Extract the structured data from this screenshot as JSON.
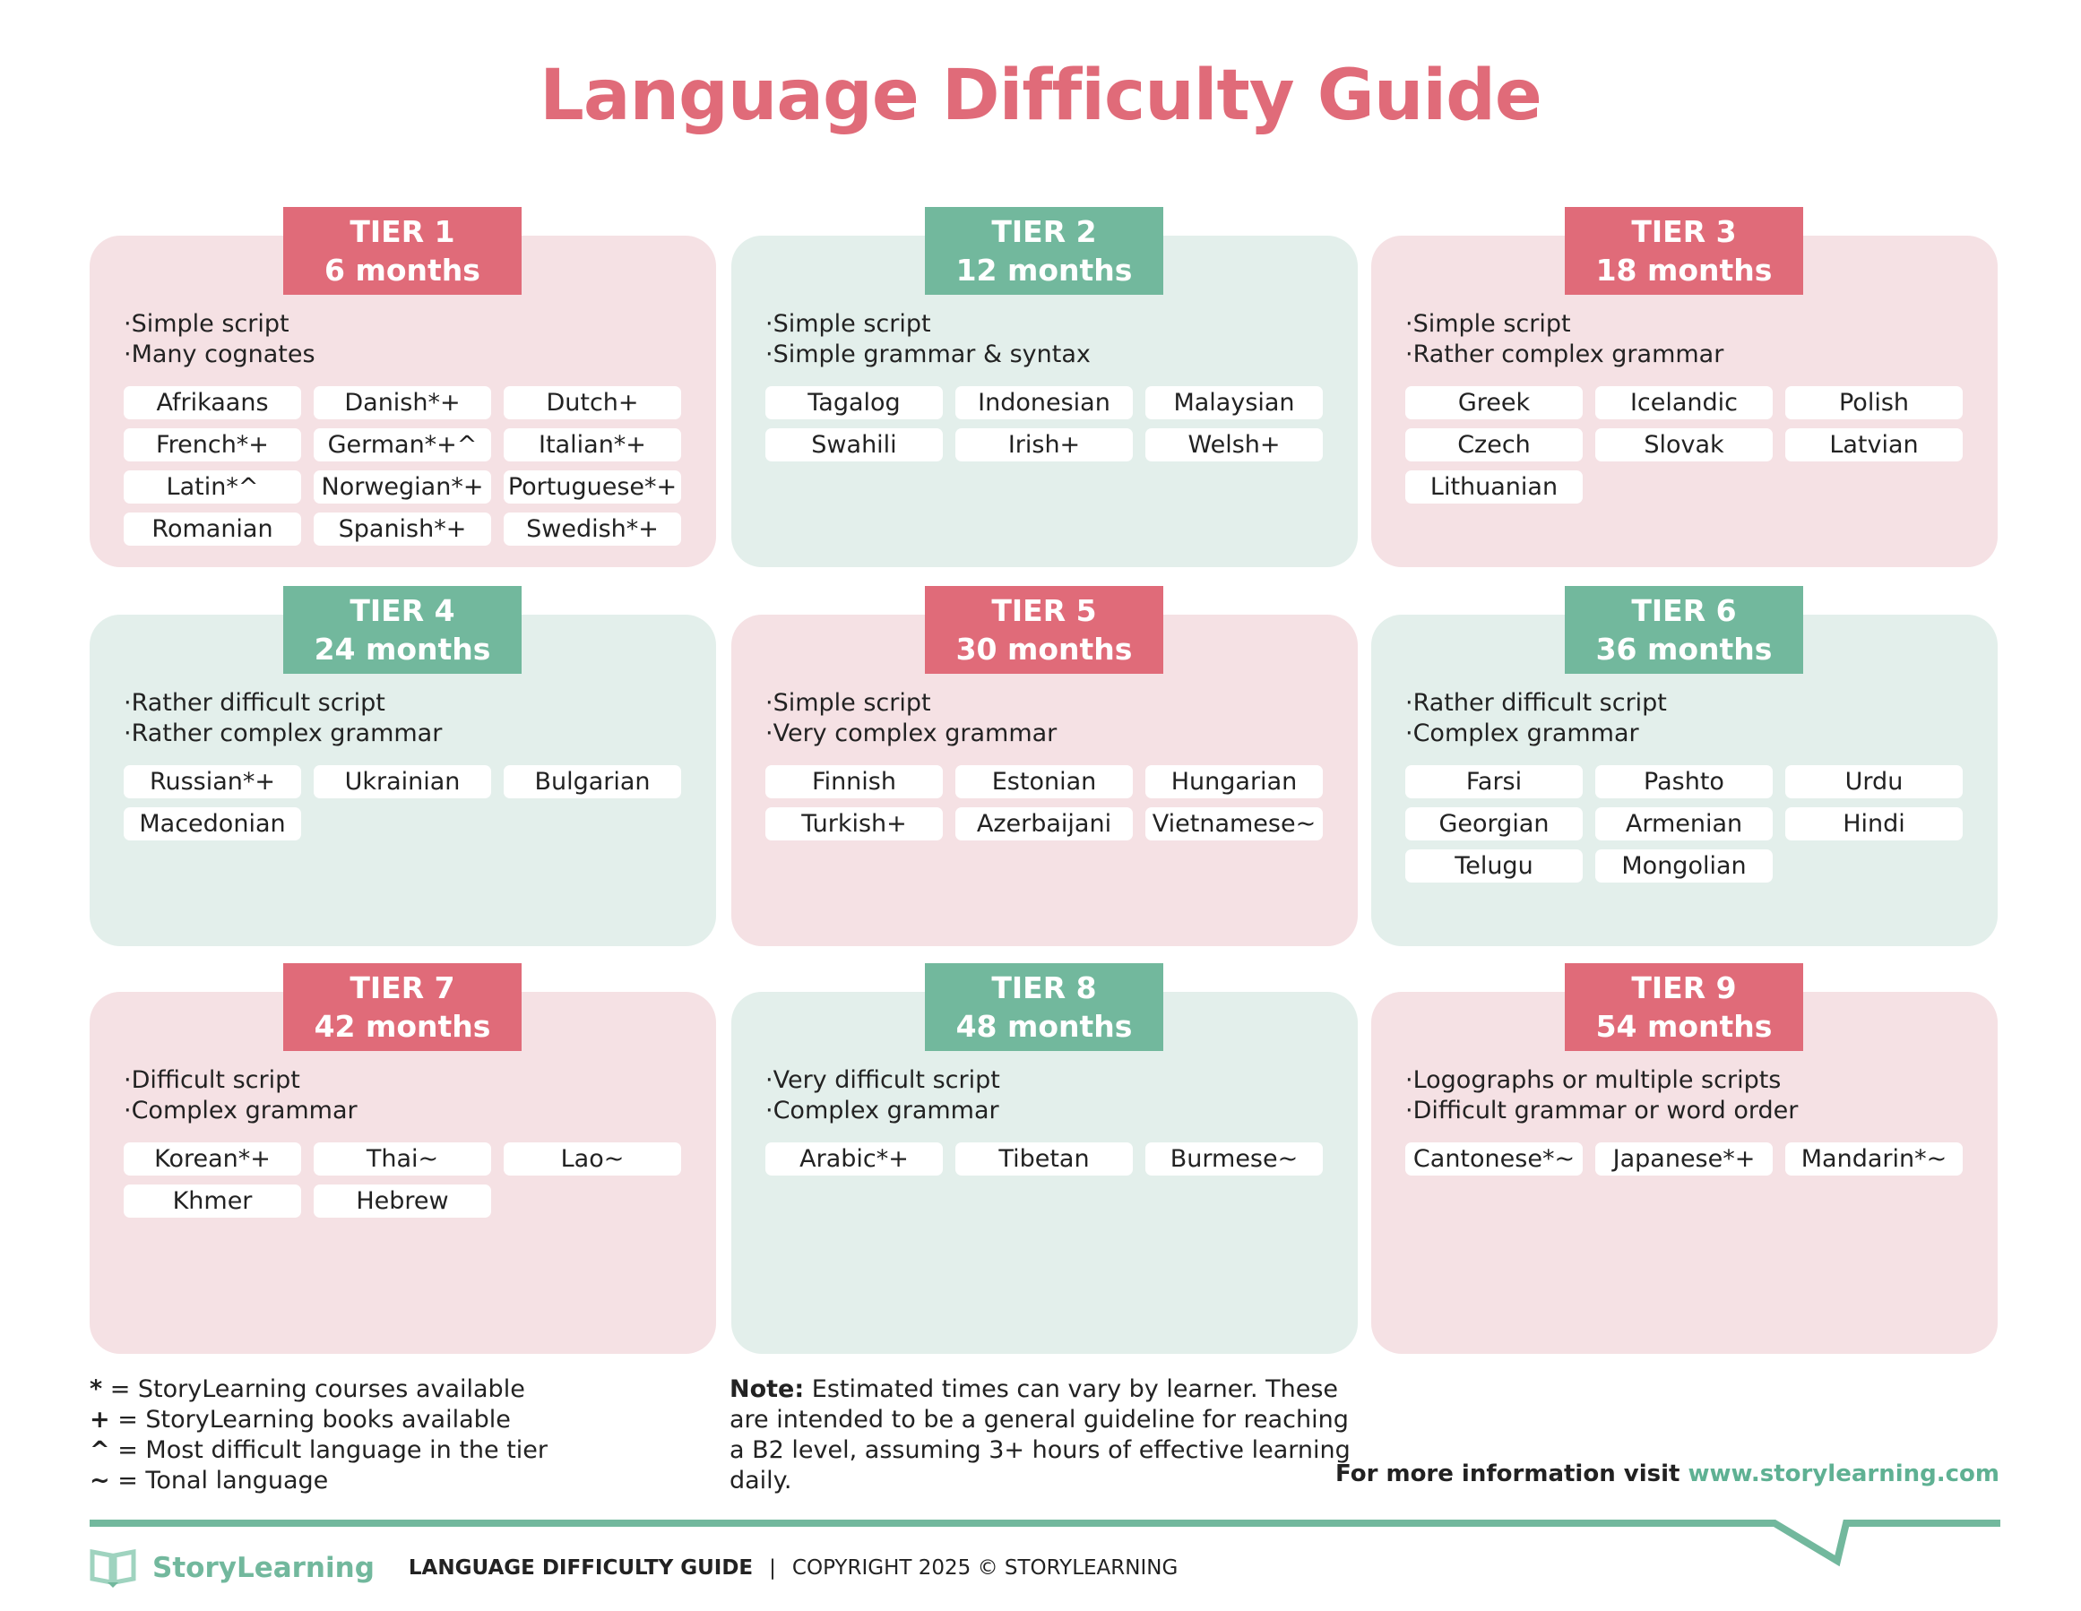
{
  "title": "Language Difficulty Guide",
  "colors": {
    "pink": "#e06b79",
    "green": "#72b89d",
    "pink_bg": "#f5e1e4",
    "green_bg": "#e3efeb"
  },
  "tiers": [
    {
      "tier": "TIER 1",
      "duration": "6 months",
      "color": "pink",
      "traits": [
        "·Simple script",
        "·Many cognates"
      ],
      "languages": [
        "Afrikaans",
        "Danish*+",
        "Dutch+",
        "French*+",
        "German*+^",
        "Italian*+",
        "Latin*^",
        "Norwegian*+",
        "Portuguese*+",
        "Romanian",
        "Spanish*+",
        "Swedish*+"
      ]
    },
    {
      "tier": "TIER 2",
      "duration": "12 months",
      "color": "green",
      "traits": [
        "·Simple script",
        "·Simple grammar & syntax"
      ],
      "languages": [
        "Tagalog",
        "Indonesian",
        "Malaysian",
        "Swahili",
        "Irish+",
        "Welsh+"
      ]
    },
    {
      "tier": "TIER 3",
      "duration": "18 months",
      "color": "pink",
      "traits": [
        "·Simple script",
        "·Rather complex grammar"
      ],
      "languages": [
        "Greek",
        "Icelandic",
        "Polish",
        "Czech",
        "Slovak",
        "Latvian",
        "Lithuanian"
      ]
    },
    {
      "tier": "TIER 4",
      "duration": "24 months",
      "color": "green",
      "traits": [
        "·Rather difficult script",
        "·Rather complex grammar"
      ],
      "languages": [
        "Russian*+",
        "Ukrainian",
        "Bulgarian",
        "Macedonian"
      ]
    },
    {
      "tier": "TIER 5",
      "duration": "30 months",
      "color": "pink",
      "traits": [
        "·Simple script",
        "·Very complex grammar"
      ],
      "languages": [
        "Finnish",
        "Estonian",
        "Hungarian",
        "Turkish+",
        "Azerbaijani",
        "Vietnamese~"
      ]
    },
    {
      "tier": "TIER 6",
      "duration": "36 months",
      "color": "green",
      "traits": [
        "·Rather difficult script",
        "·Complex grammar"
      ],
      "languages": [
        "Farsi",
        "Pashto",
        "Urdu",
        "Georgian",
        "Armenian",
        "Hindi",
        "Telugu",
        "Mongolian"
      ]
    },
    {
      "tier": "TIER 7",
      "duration": "42 months",
      "color": "pink",
      "traits": [
        "·Difficult script",
        "·Complex grammar"
      ],
      "languages": [
        "Korean*+",
        "Thai~",
        "Lao~",
        "Khmer",
        "Hebrew"
      ]
    },
    {
      "tier": "TIER 8",
      "duration": "48 months",
      "color": "green",
      "traits": [
        "·Very difficult script",
        "·Complex grammar"
      ],
      "languages": [
        "Arabic*+",
        "Tibetan",
        "Burmese~"
      ]
    },
    {
      "tier": "TIER 9",
      "duration": "54 months",
      "color": "pink",
      "traits": [
        "·Logographs or multiple scripts",
        "·Difficult grammar or word order"
      ],
      "languages": [
        "Cantonese*~",
        "Japanese*+",
        "Mandarin*~"
      ]
    }
  ],
  "legend": [
    {
      "symbol": "*",
      "text": " = StoryLearning courses available"
    },
    {
      "symbol": "+",
      "text": " = StoryLearning books available"
    },
    {
      "symbol": "^",
      "text": " = Most difficult language in the tier"
    },
    {
      "symbol": "~",
      "text": " = Tonal language"
    }
  ],
  "note": {
    "label": "Note:",
    "text": " Estimated times can vary by learner. These are intended to be a general guideline for reaching a B2 level, assuming 3+ hours of effective learning daily."
  },
  "more_info": {
    "text": "For more information visit ",
    "link": "www.storylearning.com"
  },
  "footer": {
    "brand": "StoryLearning",
    "guide": "LANGUAGE DIFFICULTY GUIDE",
    "separator": "|",
    "copyright": "COPYRIGHT 2025 © STORYLEARNING"
  }
}
